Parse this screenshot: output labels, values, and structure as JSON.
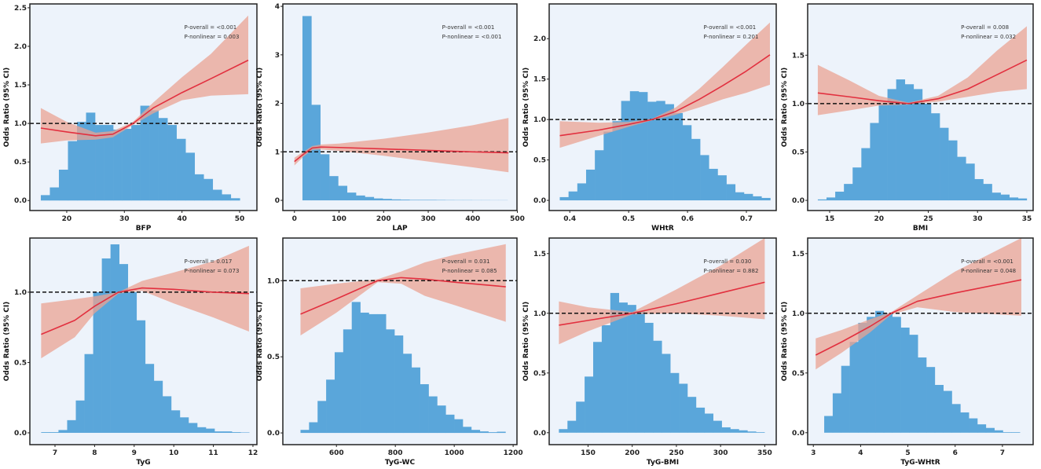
{
  "colors": {
    "plot_bg": "#edf3fb",
    "histogram": "#5aa6da",
    "ci_band": "#e9a393",
    "curve": "#e2303f",
    "reference_line": "#111111"
  },
  "chart_data": [
    {
      "type": "bar+line",
      "xlabel": "BFP",
      "ylabel": "Odds Ratio (95% CI)",
      "p_overall": "P-overall = <0.001",
      "p_nonlinear": "P-nonlinear = 0.003",
      "xlim": [
        13.6,
        53
      ],
      "ylim": [
        -0.13,
        2.55
      ],
      "xticks": [
        20,
        30,
        40,
        50
      ],
      "yticks": [
        0,
        0.5,
        1,
        1.5,
        2,
        2.5
      ],
      "ytick_labels": [
        "0.0",
        "0.5",
        "1.0",
        "1.5",
        "2.0",
        "2.5"
      ],
      "reference": 1,
      "hist": {
        "start": 15.5,
        "width": 1.57,
        "heights": [
          0.07,
          0.17,
          0.4,
          0.77,
          1.02,
          1.14,
          0.98,
          0.98,
          0.92,
          0.93,
          0.98,
          1.23,
          1.17,
          1.07,
          0.98,
          0.8,
          0.62,
          0.34,
          0.28,
          0.14,
          0.08,
          0.03
        ]
      },
      "curve": [
        [
          15.5,
          0.94,
          0.74,
          1.2
        ],
        [
          20,
          0.89,
          0.78,
          1.02
        ],
        [
          25,
          0.84,
          0.79,
          0.88
        ],
        [
          28,
          0.86,
          0.82,
          0.9
        ],
        [
          31.5,
          1.0,
          0.98,
          1.02
        ],
        [
          35,
          1.2,
          1.13,
          1.27
        ],
        [
          40,
          1.4,
          1.3,
          1.6
        ],
        [
          45,
          1.58,
          1.36,
          1.9
        ],
        [
          51.5,
          1.82,
          1.38,
          2.4
        ]
      ]
    },
    {
      "type": "bar+line",
      "xlabel": "LAP",
      "ylabel": "Odds Ratio (95% CI)",
      "p_overall": "P-overall = <0.001",
      "p_nonlinear": "P-nonlinear = <0.001",
      "xlim": [
        -26,
        499
      ],
      "ylim": [
        -0.21,
        4.05
      ],
      "xticks": [
        0,
        100,
        200,
        300,
        400,
        500
      ],
      "yticks": [
        0,
        1,
        2,
        3,
        4
      ],
      "ytick_labels": [
        "0",
        "1",
        "2",
        "3",
        "4"
      ],
      "reference": 1,
      "hist": {
        "start": 18,
        "width": 20,
        "heights": [
          3.8,
          1.97,
          0.95,
          0.5,
          0.3,
          0.16,
          0.1,
          0.07,
          0.04,
          0.03,
          0.02,
          0.015,
          0.01,
          0.01,
          0.01,
          0.008,
          0.006,
          0.005,
          0.005,
          0.004,
          0.004,
          0.003,
          0.003
        ]
      },
      "curve": [
        [
          0,
          0.8,
          0.72,
          0.88
        ],
        [
          20,
          0.95,
          0.9,
          1.0
        ],
        [
          40,
          1.08,
          1.04,
          1.12
        ],
        [
          60,
          1.1,
          1.05,
          1.15
        ],
        [
          100,
          1.09,
          1.02,
          1.17
        ],
        [
          200,
          1.06,
          0.92,
          1.27
        ],
        [
          300,
          1.03,
          0.8,
          1.4
        ],
        [
          400,
          1.0,
          0.68,
          1.55
        ],
        [
          480,
          0.98,
          0.58,
          1.7
        ]
      ]
    },
    {
      "type": "bar+line",
      "xlabel": "WHtR",
      "ylabel": "Odds Ratio (95% CI)",
      "p_overall": "P-overall = <0.001",
      "p_nonlinear": "P-nonlinear = 0.201",
      "xlim": [
        0.365,
        0.7507
      ],
      "ylim": [
        -0.126,
        2.43
      ],
      "xticks": [
        0.4,
        0.5,
        0.6,
        0.7
      ],
      "yticks": [
        0,
        0.5,
        1,
        1.5,
        2
      ],
      "ytick_labels": [
        "0.0",
        "0.5",
        "1.0",
        "1.5",
        "2.0"
      ],
      "reference": 1,
      "hist": {
        "start": 0.383,
        "width": 0.0149,
        "heights": [
          0.04,
          0.11,
          0.21,
          0.38,
          0.62,
          0.85,
          0.98,
          1.23,
          1.35,
          1.34,
          1.22,
          1.23,
          1.19,
          1.08,
          0.93,
          0.76,
          0.56,
          0.39,
          0.31,
          0.2,
          0.1,
          0.08,
          0.05,
          0.03
        ]
      },
      "curve": [
        [
          0.383,
          0.8,
          0.65,
          0.98
        ],
        [
          0.45,
          0.87,
          0.8,
          0.96
        ],
        [
          0.5,
          0.94,
          0.91,
          0.97
        ],
        [
          0.54,
          1.0,
          0.99,
          1.01
        ],
        [
          0.58,
          1.1,
          1.06,
          1.15
        ],
        [
          0.62,
          1.25,
          1.15,
          1.38
        ],
        [
          0.66,
          1.42,
          1.25,
          1.65
        ],
        [
          0.7,
          1.6,
          1.33,
          1.93
        ],
        [
          0.74,
          1.8,
          1.43,
          2.2
        ]
      ]
    },
    {
      "type": "bar+line",
      "xlabel": "BMI",
      "ylabel": "Odds Ratio (95% CI)",
      "p_overall": "P-overall = 0.008",
      "p_nonlinear": "P-nonlinear = 0.032",
      "xlim": [
        12.77,
        35.64
      ],
      "ylim": [
        -0.105,
        2.03
      ],
      "xticks": [
        15,
        20,
        25,
        30,
        35
      ],
      "yticks": [
        0,
        0.5,
        1,
        1.5
      ],
      "ytick_labels": [
        "0.0",
        "0.5",
        "1.0",
        "1.5"
      ],
      "reference": 1,
      "hist": {
        "start": 13.8,
        "width": 0.883,
        "heights": [
          0.01,
          0.03,
          0.09,
          0.17,
          0.34,
          0.54,
          0.8,
          1.0,
          1.15,
          1.25,
          1.2,
          1.15,
          1.0,
          0.9,
          0.75,
          0.62,
          0.45,
          0.38,
          0.22,
          0.17,
          0.08,
          0.06,
          0.03,
          0.02
        ]
      },
      "curve": [
        [
          13.8,
          1.11,
          0.88,
          1.4
        ],
        [
          17,
          1.07,
          0.93,
          1.24
        ],
        [
          20,
          1.03,
          0.98,
          1.08
        ],
        [
          23,
          1.0,
          0.99,
          1.01
        ],
        [
          26,
          1.05,
          1.02,
          1.08
        ],
        [
          29,
          1.15,
          1.07,
          1.27
        ],
        [
          32,
          1.3,
          1.12,
          1.55
        ],
        [
          35,
          1.45,
          1.15,
          1.8
        ]
      ]
    },
    {
      "type": "bar+line",
      "xlabel": "TyG",
      "ylabel": "Odds Ratio (95% CI)",
      "p_overall": "P-overall = 0.017",
      "p_nonlinear": "P-nonlinear = 0.073",
      "xlim": [
        6.365,
        12.1
      ],
      "ylim": [
        -0.084,
        1.385
      ],
      "xticks": [
        7,
        8,
        9,
        10,
        11,
        12
      ],
      "yticks": [
        0,
        0.5,
        1
      ],
      "ytick_labels": [
        "0.0",
        "0.5",
        "1.0"
      ],
      "reference": 1,
      "hist": {
        "start": 6.65,
        "width": 0.219,
        "heights": [
          0.005,
          0.005,
          0.02,
          0.09,
          0.23,
          0.56,
          1.0,
          1.24,
          1.34,
          1.2,
          1.0,
          0.8,
          0.49,
          0.37,
          0.26,
          0.16,
          0.11,
          0.07,
          0.04,
          0.03,
          0.01,
          0.01,
          0.005,
          0.003
        ]
      },
      "curve": [
        [
          6.65,
          0.7,
          0.53,
          0.92
        ],
        [
          7.5,
          0.8,
          0.68,
          0.95
        ],
        [
          8,
          0.9,
          0.85,
          0.97
        ],
        [
          8.6,
          1.0,
          0.99,
          1.0
        ],
        [
          9.2,
          1.03,
          1.01,
          1.08
        ],
        [
          10,
          1.02,
          0.92,
          1.14
        ],
        [
          11,
          1.0,
          0.82,
          1.22
        ],
        [
          11.9,
          0.99,
          0.72,
          1.33
        ]
      ]
    },
    {
      "type": "bar+line",
      "xlabel": "TyG-WC",
      "ylabel": "Odds Ratio (95% CI)",
      "p_overall": "P-overall = 0.031",
      "p_nonlinear": "P-nonlinear = 0.085",
      "xlim": [
        418,
        1213
      ],
      "ylim": [
        -0.077,
        1.28
      ],
      "xticks": [
        600,
        800,
        1000,
        1200
      ],
      "yticks": [
        0,
        0.5,
        1
      ],
      "ytick_labels": [
        "0.0",
        "0.5",
        "1.0"
      ],
      "reference": 1,
      "hist": {
        "start": 478,
        "width": 29,
        "heights": [
          0.02,
          0.07,
          0.21,
          0.35,
          0.53,
          0.68,
          0.86,
          0.79,
          0.78,
          0.78,
          0.68,
          0.64,
          0.52,
          0.43,
          0.32,
          0.24,
          0.18,
          0.12,
          0.09,
          0.04,
          0.02,
          0.01,
          0.005,
          0.008
        ]
      },
      "curve": [
        [
          478,
          0.78,
          0.64,
          0.95
        ],
        [
          600,
          0.88,
          0.79,
          0.98
        ],
        [
          740,
          1.0,
          0.99,
          1.01
        ],
        [
          820,
          1.02,
          0.98,
          1.06
        ],
        [
          900,
          1.01,
          0.9,
          1.12
        ],
        [
          1000,
          0.99,
          0.84,
          1.17
        ],
        [
          1175,
          0.96,
          0.73,
          1.24
        ]
      ]
    },
    {
      "type": "bar+line",
      "xlabel": "TyG-BMI",
      "ylabel": "Odds Ratio (95% CI)",
      "p_overall": "P-overall = 0.030",
      "p_nonlinear": "P-nonlinear = 0.882",
      "xlim": [
        106,
        363
      ],
      "ylim": [
        -0.1,
        1.63
      ],
      "xticks": [
        150,
        200,
        250,
        300,
        350
      ],
      "yticks": [
        0,
        0.5,
        1,
        1.5
      ],
      "ytick_labels": [
        "0.0",
        "0.5",
        "1.0",
        "1.5"
      ],
      "reference": 1,
      "hist": {
        "start": 117,
        "width": 9.7,
        "heights": [
          0.03,
          0.1,
          0.26,
          0.47,
          0.76,
          0.9,
          1.17,
          1.09,
          1.07,
          1.02,
          0.92,
          0.77,
          0.66,
          0.5,
          0.41,
          0.3,
          0.21,
          0.16,
          0.1,
          0.045,
          0.03,
          0.02,
          0.01,
          0.005
        ]
      },
      "curve": [
        [
          117,
          0.9,
          0.74,
          1.1
        ],
        [
          150,
          0.94,
          0.85,
          1.05
        ],
        [
          200,
          1.0,
          0.99,
          1.01
        ],
        [
          250,
          1.08,
          1.0,
          1.2
        ],
        [
          300,
          1.17,
          0.98,
          1.4
        ],
        [
          350,
          1.26,
          0.95,
          1.63
        ]
      ]
    },
    {
      "type": "bar+line",
      "xlabel": "TyG-WHtR",
      "ylabel": "Odds Ratio (95% CI)",
      "p_overall": "P-overall = <0.001",
      "p_nonlinear": "P-nonlinear = 0.048",
      "xlim": [
        2.88,
        7.65
      ],
      "ylim": [
        -0.1,
        1.63
      ],
      "xticks": [
        3,
        4,
        5,
        6,
        7
      ],
      "yticks": [
        0,
        0.5,
        1,
        1.5
      ],
      "ytick_labels": [
        "0.0",
        "0.5",
        "1.0",
        "1.5"
      ],
      "reference": 1,
      "hist": {
        "start": 3.23,
        "width": 0.18,
        "heights": [
          0.14,
          0.33,
          0.56,
          0.76,
          0.92,
          0.97,
          1.02,
          1.0,
          0.97,
          0.88,
          0.82,
          0.63,
          0.55,
          0.4,
          0.35,
          0.24,
          0.17,
          0.12,
          0.07,
          0.04,
          0.02,
          0.005,
          0.005
        ]
      },
      "curve": [
        [
          3.05,
          0.65,
          0.53,
          0.79
        ],
        [
          3.6,
          0.76,
          0.67,
          0.86
        ],
        [
          4.2,
          0.89,
          0.84,
          0.95
        ],
        [
          4.65,
          1.0,
          0.99,
          1.01
        ],
        [
          5.2,
          1.1,
          1.05,
          1.15
        ],
        [
          6,
          1.17,
          1.01,
          1.35
        ],
        [
          7.4,
          1.28,
          0.98,
          1.63
        ]
      ]
    }
  ]
}
